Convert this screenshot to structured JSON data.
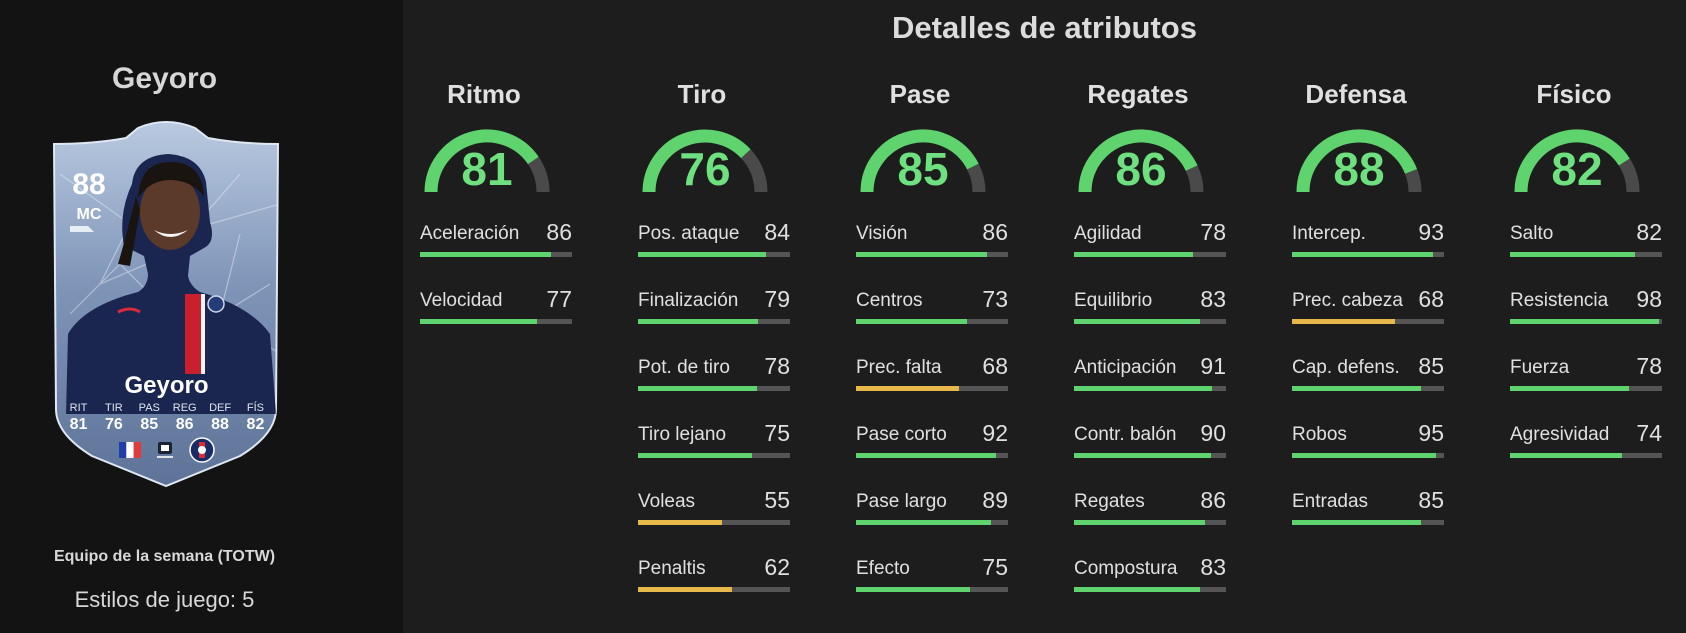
{
  "player": {
    "name": "Geyoro",
    "team_type": "Equipo de la semana (TOTW)",
    "playstyles_text": "Estilos de juego: 5"
  },
  "card": {
    "rating": "88",
    "position": "MC",
    "name": "Geyoro",
    "stats": [
      {
        "label": "RIT",
        "value": "81"
      },
      {
        "label": "TIR",
        "value": "76"
      },
      {
        "label": "PAS",
        "value": "85"
      },
      {
        "label": "REG",
        "value": "86"
      },
      {
        "label": "DEF",
        "value": "88"
      },
      {
        "label": "FÍS",
        "value": "82"
      }
    ],
    "badges": [
      "france-flag-icon",
      "league-badge-icon",
      "club-crest-icon"
    ]
  },
  "section_title": "Detalles de atributos",
  "colors": {
    "high": "#5fd36e",
    "mid": "#e8b94a",
    "track": "#555555",
    "gauge_track": "#4a4a4a"
  },
  "categories": [
    {
      "name": "Ritmo",
      "value": "81",
      "attributes": [
        {
          "name": "Aceleración",
          "value": "86"
        },
        {
          "name": "Velocidad",
          "value": "77"
        }
      ]
    },
    {
      "name": "Tiro",
      "value": "76",
      "attributes": [
        {
          "name": "Pos. ataque",
          "value": "84"
        },
        {
          "name": "Finalización",
          "value": "79"
        },
        {
          "name": "Pot. de tiro",
          "value": "78"
        },
        {
          "name": "Tiro lejano",
          "value": "75"
        },
        {
          "name": "Voleas",
          "value": "55"
        },
        {
          "name": "Penaltis",
          "value": "62"
        }
      ]
    },
    {
      "name": "Pase",
      "value": "85",
      "attributes": [
        {
          "name": "Visión",
          "value": "86"
        },
        {
          "name": "Centros",
          "value": "73"
        },
        {
          "name": "Prec. falta",
          "value": "68"
        },
        {
          "name": "Pase corto",
          "value": "92"
        },
        {
          "name": "Pase largo",
          "value": "89"
        },
        {
          "name": "Efecto",
          "value": "75"
        }
      ]
    },
    {
      "name": "Regates",
      "value": "86",
      "attributes": [
        {
          "name": "Agilidad",
          "value": "78"
        },
        {
          "name": "Equilibrio",
          "value": "83"
        },
        {
          "name": "Anticipación",
          "value": "91"
        },
        {
          "name": "Contr. balón",
          "value": "90"
        },
        {
          "name": "Regates",
          "value": "86"
        },
        {
          "name": "Compostura",
          "value": "83"
        }
      ]
    },
    {
      "name": "Defensa",
      "value": "88",
      "attributes": [
        {
          "name": "Intercep.",
          "value": "93"
        },
        {
          "name": "Prec. cabeza",
          "value": "68"
        },
        {
          "name": "Cap. defens.",
          "value": "85"
        },
        {
          "name": "Robos",
          "value": "95"
        },
        {
          "name": "Entradas",
          "value": "85"
        }
      ]
    },
    {
      "name": "Físico",
      "value": "82",
      "attributes": [
        {
          "name": "Salto",
          "value": "82"
        },
        {
          "name": "Resistencia",
          "value": "98"
        },
        {
          "name": "Fuerza",
          "value": "78"
        },
        {
          "name": "Agresividad",
          "value": "74"
        }
      ]
    }
  ]
}
